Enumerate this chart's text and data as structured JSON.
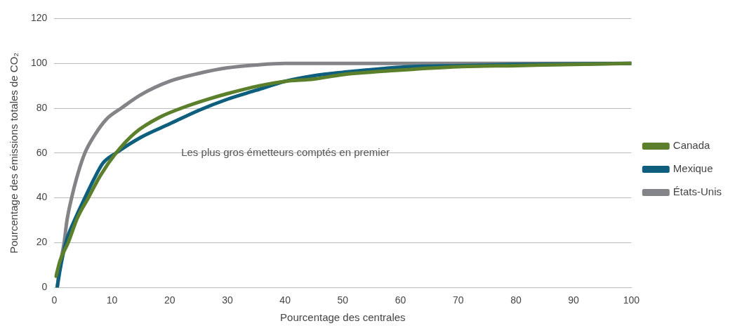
{
  "chart_data": {
    "type": "line",
    "xlabel": "Pourcentage des centrales",
    "ylabel": "Pourcentage des émissions totales de CO₂",
    "annotations": [
      "Les plus gros émetteurs comptés en premier"
    ],
    "xlim": [
      0,
      100
    ],
    "xticks": [
      0,
      10,
      20,
      30,
      40,
      50,
      60,
      70,
      80,
      90,
      100
    ],
    "ylim": [
      0,
      120
    ],
    "yticks": [
      0,
      20,
      40,
      60,
      80,
      100,
      120
    ],
    "grid": "y",
    "legend": "right",
    "marker": "none",
    "line_style": "solid",
    "series": [
      {
        "name": "Canada",
        "color": "#5b7f2b",
        "x": [
          0.3,
          1,
          2.4,
          4,
          5.9,
          8,
          10.7,
          14,
          18.3,
          22,
          26,
          30,
          35.5,
          40,
          45,
          50,
          60,
          70,
          80,
          90,
          100
        ],
        "values": [
          5,
          12,
          20,
          31,
          40,
          50,
          60,
          69,
          76,
          80,
          83.5,
          86.5,
          90,
          92,
          93,
          95,
          97,
          98.5,
          99,
          99.5,
          100
        ]
      },
      {
        "name": "Mexique",
        "color": "#0e5f7e",
        "x": [
          0.5,
          1,
          2,
          3.5,
          5.3,
          7,
          8.4,
          10.7,
          15,
          20,
          25,
          30,
          35,
          40,
          45,
          50,
          60,
          70,
          80,
          100
        ],
        "values": [
          0,
          8,
          20,
          30,
          40,
          49,
          55.4,
          60,
          67,
          73,
          79,
          84,
          88,
          92,
          94.5,
          96,
          98.3,
          99,
          99.5,
          100
        ]
      },
      {
        "name": "États-Unis",
        "color": "#838487",
        "x": [
          0.5,
          1,
          1.7,
          2.2,
          3,
          4,
          5.3,
          7,
          9,
          11.6,
          15,
          20,
          25,
          30,
          35,
          40,
          100
        ],
        "values": [
          0,
          10,
          20,
          30,
          40,
          50,
          60,
          68,
          75,
          80,
          86,
          92,
          95.5,
          98,
          99.3,
          100,
          100
        ]
      }
    ]
  }
}
